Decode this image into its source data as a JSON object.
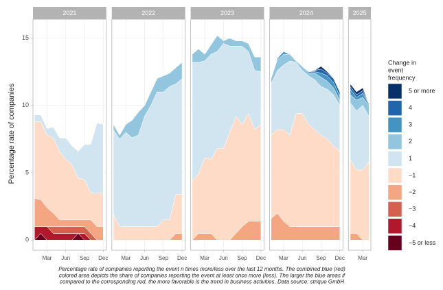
{
  "chart_data": {
    "type": "stacked-area-facets",
    "ylabel": "Percentage rate of companies",
    "ylim": [
      -0.75,
      16.4
    ],
    "yticks": [
      0,
      5,
      10,
      15
    ],
    "grid": true,
    "facets": [
      {
        "label": "2021",
        "xlim": [
          0.75,
          12.5
        ],
        "xticks": [
          {
            "value": 3,
            "label": "Mar"
          },
          {
            "value": 6,
            "label": "Jun"
          },
          {
            "value": 9,
            "label": "Sep"
          },
          {
            "value": 12,
            "label": "Dec"
          }
        ]
      },
      {
        "label": "2022",
        "xlim": [
          0.75,
          12.5
        ],
        "xticks": [
          {
            "value": 3,
            "label": "Mar"
          },
          {
            "value": 6,
            "label": "Jun"
          },
          {
            "value": 9,
            "label": "Sep"
          },
          {
            "value": 12,
            "label": "Dec"
          }
        ]
      },
      {
        "label": "2023",
        "xlim": [
          0.75,
          12.5
        ],
        "xticks": [
          {
            "value": 3,
            "label": "Mar"
          },
          {
            "value": 6,
            "label": "Jun"
          },
          {
            "value": 9,
            "label": "Sep"
          },
          {
            "value": 12,
            "label": "Dec"
          }
        ]
      },
      {
        "label": "2024",
        "xlim": [
          0.75,
          12.5
        ],
        "xticks": [
          {
            "value": 3,
            "label": "Mar"
          },
          {
            "value": 6,
            "label": "Jun"
          },
          {
            "value": 9,
            "label": "Sep"
          },
          {
            "value": 12,
            "label": "Dec"
          }
        ]
      },
      {
        "label": "2025",
        "xlim": [
          0.7,
          4.3
        ],
        "xticks": [
          {
            "value": 3,
            "label": "Mar"
          }
        ]
      }
    ],
    "x": [
      "2021-01",
      "2021-02",
      "2021-03",
      "2021-04",
      "2021-05",
      "2021-06",
      "2021-07",
      "2021-08",
      "2021-09",
      "2021-10",
      "2021-11",
      "2021-12",
      "2022-01",
      "2022-02",
      "2022-03",
      "2022-04",
      "2022-05",
      "2022-06",
      "2022-07",
      "2022-08",
      "2022-09",
      "2022-10",
      "2022-11",
      "2022-12",
      "2023-01",
      "2023-02",
      "2023-03",
      "2023-04",
      "2023-05",
      "2023-06",
      "2023-07",
      "2023-08",
      "2023-09",
      "2023-10",
      "2023-11",
      "2023-12",
      "2024-01",
      "2024-02",
      "2024-03",
      "2024-04",
      "2024-05",
      "2024-06",
      "2024-07",
      "2024-08",
      "2024-09",
      "2024-10",
      "2024-11",
      "2024-12",
      "2025-01",
      "2025-02",
      "2025-03",
      "2025-04"
    ],
    "legend_title": [
      "Change in",
      "event",
      "frequency"
    ],
    "series": [
      {
        "name": "5 or more",
        "color": "#08306b",
        "values": [
          0,
          0,
          0,
          0,
          0,
          0,
          0,
          0,
          0,
          0,
          0,
          0,
          0,
          0,
          0,
          0,
          0,
          0,
          0,
          0,
          0,
          0,
          0,
          0,
          0,
          0,
          0,
          0,
          0,
          0,
          0,
          0,
          0,
          0,
          0,
          0,
          0,
          0,
          0,
          0,
          0,
          0,
          0,
          0,
          0.2,
          0.1,
          0,
          0,
          0.2,
          0.2,
          0.2,
          0
        ]
      },
      {
        "name": "4",
        "color": "#2166ac",
        "values": [
          0,
          0,
          0,
          0,
          0,
          0,
          0,
          0,
          0,
          0,
          0,
          0,
          0,
          0,
          0,
          0,
          0,
          0,
          0,
          0,
          0,
          0,
          0,
          0,
          0,
          0,
          0,
          0,
          0,
          0,
          0,
          0,
          0,
          0,
          0,
          0,
          0,
          0,
          0,
          0,
          0,
          0,
          0,
          0.1,
          0.3,
          0.2,
          0.3,
          0.3,
          0.2,
          0.2,
          0.2,
          0
        ]
      },
      {
        "name": "3",
        "color": "#4393c3",
        "values": [
          0,
          0,
          0,
          0,
          0,
          0,
          0,
          0,
          0,
          0,
          0,
          0,
          0,
          0,
          0,
          0,
          0,
          0,
          0,
          0,
          0,
          0,
          0,
          0,
          0,
          0,
          0,
          0,
          0,
          0,
          0,
          0,
          0,
          0,
          0,
          0,
          0,
          0.1,
          0.2,
          0,
          0,
          0,
          0.1,
          0.1,
          0.3,
          0.4,
          0.4,
          0.3,
          0.4,
          0.2,
          0.3,
          0.1
        ]
      },
      {
        "name": "2",
        "color": "#92c5de",
        "values": [
          0,
          0,
          0,
          0,
          0,
          0,
          0,
          0,
          0,
          0,
          0,
          0,
          0.4,
          0.3,
          0.6,
          1.3,
          1.7,
          0.8,
          1.0,
          1.0,
          1.2,
          1.0,
          1.2,
          1.2,
          0.6,
          1.0,
          0.5,
          0.7,
          1.2,
          0.2,
          0.6,
          0.4,
          0.4,
          0.6,
          1.0,
          1.1,
          0.4,
          0.8,
          0.8,
          0.5,
          0.1,
          0.3,
          0.2,
          0.5,
          0.7,
          0.6,
          0.5,
          0.4,
          0.6,
          0.8,
          0.6,
          0.8
        ]
      },
      {
        "name": "1",
        "color": "#d1e5f0",
        "values": [
          0.5,
          0.5,
          0.5,
          0.8,
          1.0,
          1.6,
          1.4,
          2.0,
          2.6,
          3.6,
          5.2,
          5.1,
          6.3,
          6.5,
          7.0,
          6.6,
          6.8,
          8.2,
          9.0,
          10.0,
          9.5,
          9.9,
          8.2,
          8.6,
          8.8,
          8.3,
          7.2,
          7.8,
          7.2,
          7.8,
          6.4,
          5.2,
          5.8,
          4.6,
          4.4,
          3.9,
          3.8,
          4.4,
          4.8,
          5.5,
          3.8,
          3.2,
          3.6,
          3.7,
          3.6,
          3.7,
          3.8,
          3.4,
          4.2,
          4.4,
          4.8,
          3.4
        ]
      },
      {
        "name": "−1",
        "color": "#fddbc7",
        "values": [
          5.7,
          5.8,
          5.4,
          5.6,
          5.1,
          4.5,
          4.1,
          3.1,
          3.0,
          2.0,
          2.5,
          2.5,
          1.9,
          1.0,
          1.0,
          1.0,
          1.0,
          1.0,
          1.0,
          1.0,
          1.5,
          1.5,
          2.9,
          2.9,
          4.4,
          4.4,
          5.6,
          5.5,
          6.8,
          6.8,
          8.0,
          8.7,
          7.6,
          8.0,
          6.8,
          7.2,
          6.2,
          6.2,
          6.8,
          6.8,
          8.4,
          8.4,
          7.6,
          7.2,
          6.8,
          6.5,
          6.0,
          5.6,
          5.5,
          4.7,
          5.2,
          5.8
        ]
      },
      {
        "name": "−2",
        "color": "#f4a582",
        "values": [
          2.1,
          2.0,
          1.4,
          1.0,
          0.5,
          0.5,
          0.5,
          0.5,
          0.5,
          1.0,
          1.0,
          1.0,
          0,
          0,
          0,
          0,
          0,
          0,
          0,
          0,
          0,
          0,
          0.5,
          0.5,
          0,
          0.5,
          0.5,
          0.5,
          0,
          0,
          0,
          0.5,
          1.0,
          1.4,
          1.4,
          1.4,
          1.6,
          2.0,
          1.4,
          1.0,
          1.0,
          1.0,
          1.0,
          1.0,
          1.0,
          1.0,
          1.0,
          1.0,
          0.5,
          0.5,
          0,
          0
        ]
      },
      {
        "name": "−3",
        "color": "#d6604d",
        "values": [
          0,
          0,
          0,
          0.5,
          0.5,
          0.5,
          0.5,
          0.5,
          0.5,
          0.5,
          0,
          0,
          0,
          0,
          0,
          0,
          0,
          0,
          0,
          0,
          0,
          0,
          0,
          0,
          0,
          0,
          0,
          0,
          0,
          0,
          0,
          0,
          0,
          0,
          0,
          0,
          0,
          0,
          0,
          0,
          0,
          0,
          0,
          0,
          0,
          0,
          0,
          0,
          0,
          0,
          0,
          0
        ]
      },
      {
        "name": "−4",
        "color": "#b2182b",
        "values": [
          1,
          0.5,
          1,
          0.5,
          0.5,
          0.5,
          0.5,
          0,
          0.5,
          0,
          0,
          0,
          0,
          0,
          0,
          0,
          0,
          0,
          0,
          0,
          0,
          0,
          0,
          0,
          0,
          0,
          0,
          0,
          0,
          0,
          0,
          0,
          0,
          0,
          0,
          0,
          0,
          0,
          0,
          0,
          0,
          0,
          0,
          0,
          0,
          0,
          0,
          0,
          0,
          0,
          0,
          0
        ]
      },
      {
        "name": "−5 or less",
        "color": "#67001f",
        "values": [
          0,
          0.5,
          0,
          0,
          0,
          0,
          0,
          0.5,
          0,
          0,
          0,
          0,
          0,
          0,
          0,
          0,
          0,
          0,
          0,
          0,
          0,
          0,
          0,
          0,
          0,
          0,
          0,
          0,
          0,
          0,
          0,
          0,
          0,
          0,
          0,
          0,
          0,
          0,
          0,
          0,
          0,
          0,
          0,
          0,
          0,
          0,
          0,
          0,
          0,
          0,
          0,
          0
        ]
      }
    ],
    "caption": [
      "Percentage rate of companies reporting the event n times more/less over the last 12 months. The combined blue (red)",
      "colored area depicts the share of companies reporting the event at least once more (less). The larger the blue areas if",
      "compared to the corresponding red, the more favorable is the trend in business activities. Data source: strique GmbH"
    ]
  }
}
